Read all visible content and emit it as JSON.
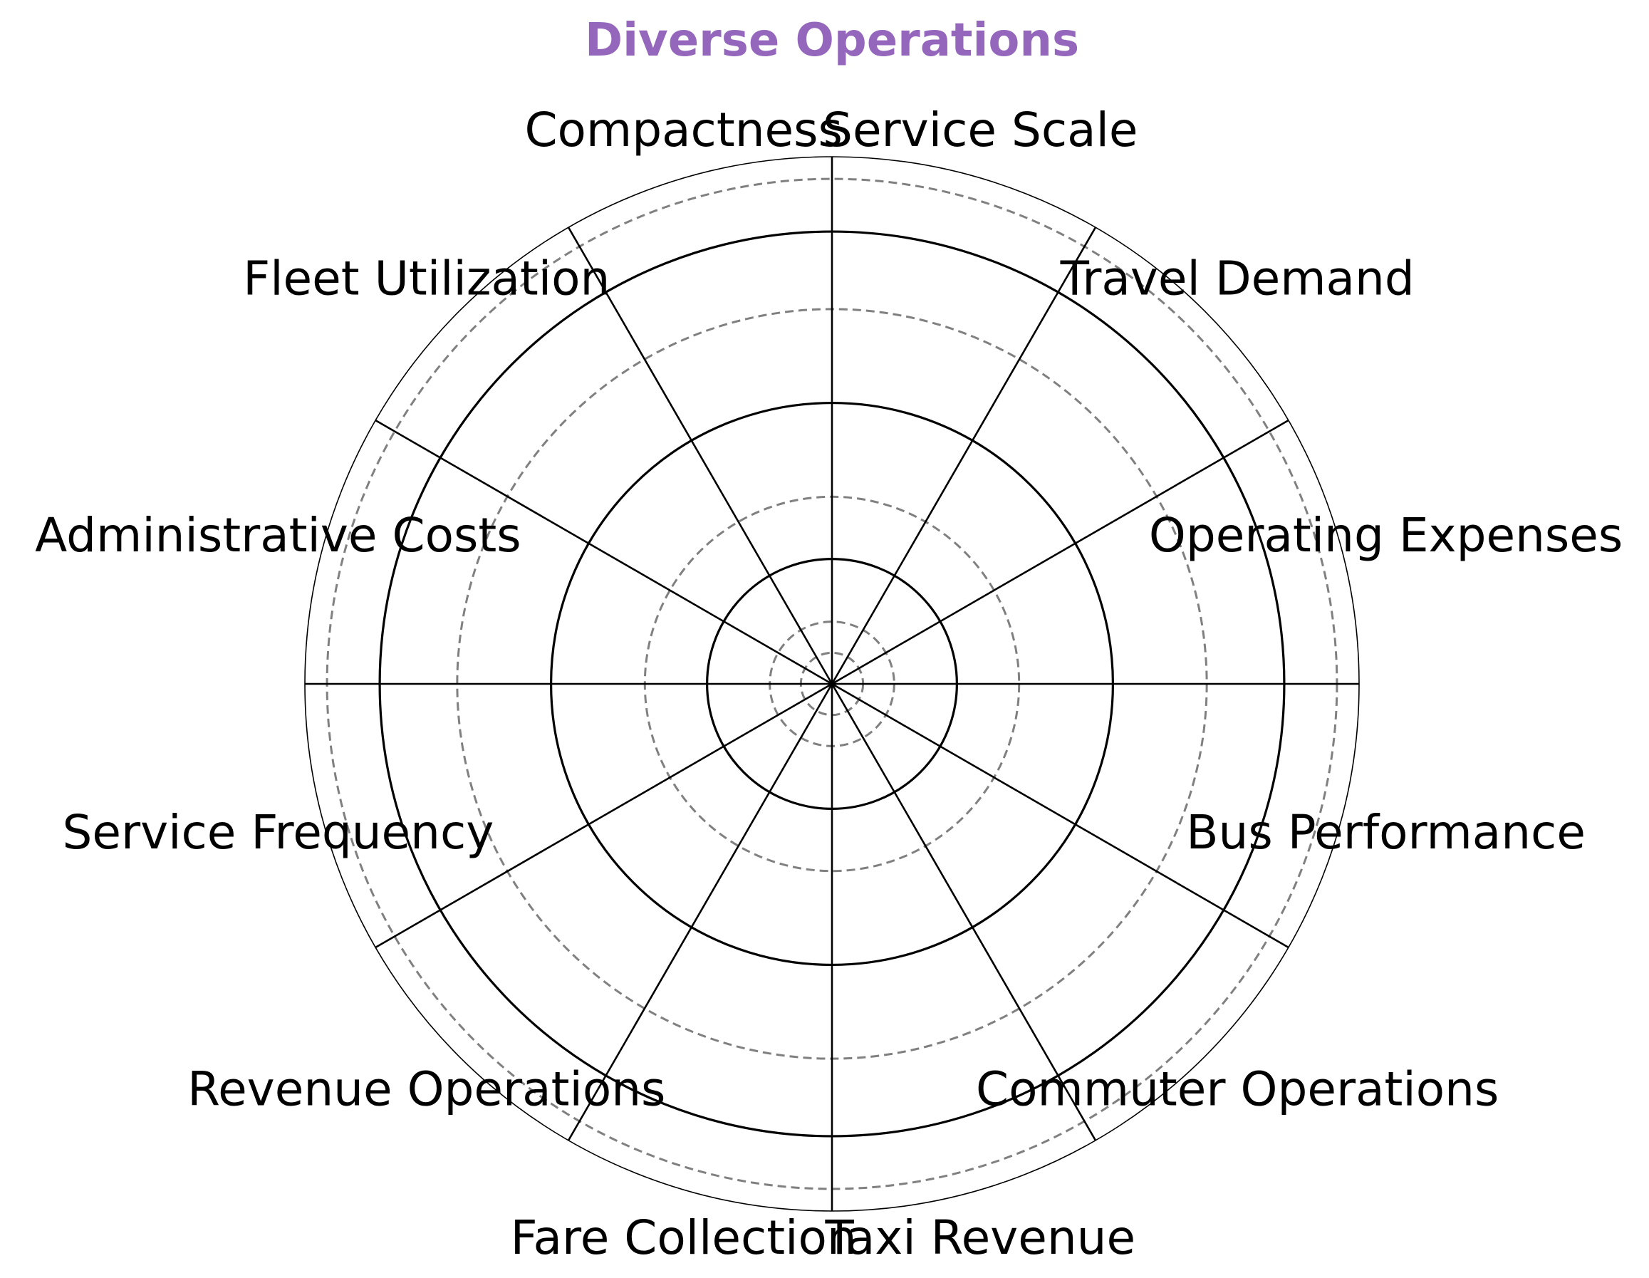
{
  "chart_data": {
    "type": "polar",
    "title": "Diverse Operations",
    "categories": [
      "Operating Expenses",
      "Travel Demand",
      "Service Scale",
      "Compactness",
      "Fleet Utilization",
      "Administrative Costs",
      "Service Frequency",
      "Revenue Operations",
      "Fare Collection",
      "Taxi Revenue",
      "Commuter Operations",
      "Bus Performance"
    ],
    "category_angles_deg": [
      15,
      45,
      75,
      105,
      135,
      165,
      195,
      225,
      255,
      285,
      315,
      345
    ],
    "axis_boundaries_deg": [
      0,
      30,
      60,
      90,
      120,
      150,
      180,
      210,
      240,
      270,
      300,
      330
    ],
    "radial_range": [
      0,
      1
    ],
    "solid_rings": [
      0.237,
      0.533,
      0.858
    ],
    "dashed_rings": [
      0.059,
      0.118,
      0.355,
      0.711,
      0.958
    ],
    "grid": true,
    "legend": "none"
  },
  "colors": {
    "title": "#9467bd",
    "grid_solid": "#000000",
    "grid_dashed": "#808080",
    "spokes": "#000000",
    "text": "#000000",
    "background": "#ffffff"
  }
}
